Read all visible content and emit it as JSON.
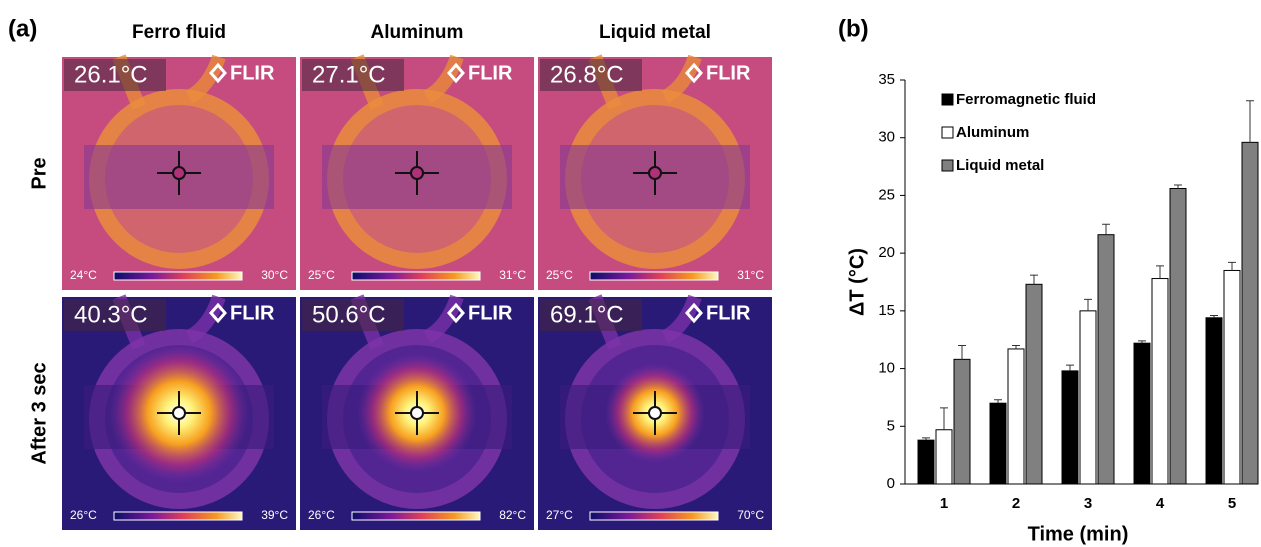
{
  "panel_a": {
    "label": "(a)",
    "columns": [
      "Ferro fluid",
      "Aluminum",
      "Liquid metal"
    ],
    "rows": [
      "Pre",
      "After 3 sec"
    ],
    "brand": "FLIR",
    "images": [
      [
        {
          "temp": "26.1°C",
          "scale_min": "24°C",
          "scale_max": "30°C"
        },
        {
          "temp": "27.1°C",
          "scale_min": "25°C",
          "scale_max": "31°C"
        },
        {
          "temp": "26.8°C",
          "scale_min": "25°C",
          "scale_max": "31°C"
        }
      ],
      [
        {
          "temp": "40.3°C",
          "scale_min": "26°C",
          "scale_max": "39°C"
        },
        {
          "temp": "50.6°C",
          "scale_min": "26°C",
          "scale_max": "82°C"
        },
        {
          "temp": "69.1°C",
          "scale_min": "27°C",
          "scale_max": "70°C"
        }
      ]
    ]
  },
  "chart_data": {
    "type": "bar",
    "panel_label": "(b)",
    "x_label": "Time (min)",
    "y_label": "ΔT (°C)",
    "categories": [
      "1",
      "2",
      "3",
      "4",
      "5"
    ],
    "series": [
      {
        "name": "Ferromagnetic fluid",
        "color": "#000000",
        "values": [
          3.8,
          7.0,
          9.8,
          12.2,
          14.4
        ],
        "errors": [
          0.2,
          0.3,
          0.5,
          0.2,
          0.2
        ]
      },
      {
        "name": "Aluminum",
        "color": "#ffffff",
        "values": [
          4.7,
          11.7,
          15.0,
          17.8,
          18.5
        ],
        "errors": [
          1.9,
          0.3,
          1.0,
          1.1,
          0.7
        ]
      },
      {
        "name": "Liquid metal",
        "color": "#808080",
        "values": [
          10.8,
          17.3,
          21.6,
          25.6,
          29.6
        ],
        "errors": [
          1.2,
          0.8,
          0.9,
          0.3,
          3.6
        ]
      }
    ],
    "ylim": [
      0,
      35
    ],
    "yticks": [
      0,
      5,
      10,
      15,
      20,
      25,
      30,
      35
    ],
    "legend": "upper-left"
  }
}
